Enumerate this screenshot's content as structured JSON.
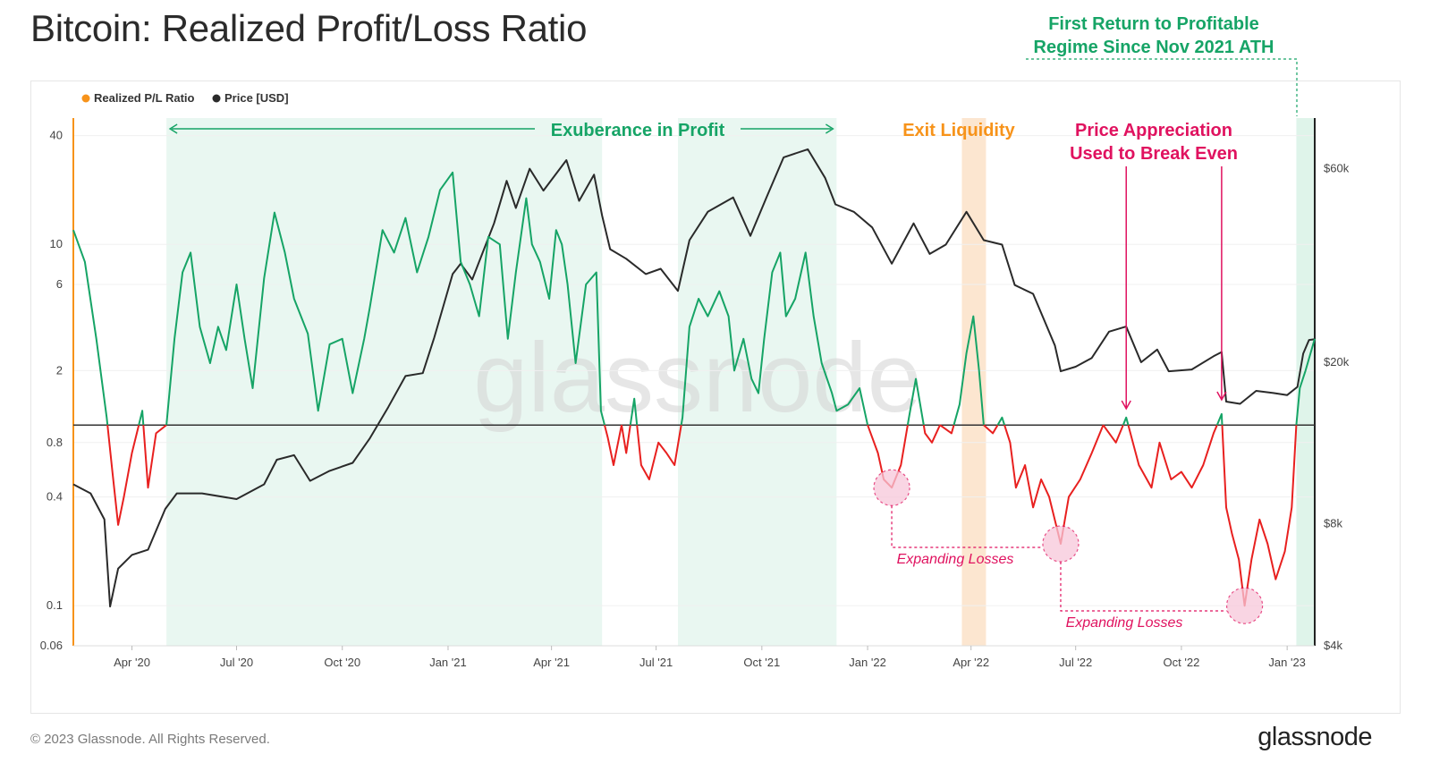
{
  "page": {
    "title": "Bitcoin: Realized Profit/Loss Ratio",
    "footer_copyright": "© 2023 Glassnode. All Rights Reserved.",
    "footer_logo": "glassnode",
    "watermark": "glassnode"
  },
  "colors": {
    "profit": "#16a466",
    "loss": "#e8201f",
    "price": "#2a2a2a",
    "ratio_legend": "#f7931a",
    "exuberance_text": "#16a466",
    "exit_text": "#f7931a",
    "break_even_text": "#e0125f",
    "expanding_text": "#e0125f",
    "shade_green": "#e5f6ee",
    "shade_orange": "#fbe2c8",
    "shade_recent": "#d9f2e6",
    "circle_fill": "#f7c8da"
  },
  "chart_data": {
    "type": "line",
    "title": "Bitcoin: Realized Profit/Loss Ratio",
    "legend": [
      {
        "name": "Realized P/L Ratio",
        "color": "#f7931a"
      },
      {
        "name": "Price [USD]",
        "color": "#2a2a2a"
      }
    ],
    "legend_position": "top-left",
    "x_ticks": [
      "Apr '20",
      "Jul '20",
      "Oct '20",
      "Jan '21",
      "Apr '21",
      "Jul '21",
      "Oct '21",
      "Jan '22",
      "Apr '22",
      "Jul '22",
      "Oct '22",
      "Jan '23"
    ],
    "x_range": [
      "2020-02-10",
      "2023-01-25"
    ],
    "y_left": {
      "scale": "log",
      "range": [
        0.06,
        50
      ],
      "ticks": [
        "40",
        "10",
        "6",
        "2",
        "0.8",
        "0.4",
        "0.1",
        "0.06"
      ],
      "tick_values": [
        40,
        10,
        6,
        2,
        0.8,
        0.4,
        0.1,
        0.06
      ]
    },
    "y_right": {
      "scale": "log",
      "range": [
        4000,
        80000
      ],
      "ticks": [
        "$60k",
        "$20k",
        "$8k",
        "$4k"
      ],
      "tick_values": [
        60000,
        20000,
        8000,
        4000
      ]
    },
    "threshold": 1,
    "series": [
      {
        "name": "Realized P/L Ratio",
        "axis": "left",
        "points": [
          [
            "2020-02-10",
            12
          ],
          [
            "2020-02-20",
            8
          ],
          [
            "2020-03-01",
            3
          ],
          [
            "2020-03-10",
            1.1
          ],
          [
            "2020-03-15",
            0.55
          ],
          [
            "2020-03-20",
            0.28
          ],
          [
            "2020-03-25",
            0.4
          ],
          [
            "2020-04-01",
            0.7
          ],
          [
            "2020-04-10",
            1.2
          ],
          [
            "2020-04-15",
            0.45
          ],
          [
            "2020-04-22",
            0.9
          ],
          [
            "2020-05-01",
            1.0
          ],
          [
            "2020-05-08",
            3
          ],
          [
            "2020-05-15",
            7
          ],
          [
            "2020-05-22",
            9
          ],
          [
            "2020-05-30",
            3.5
          ],
          [
            "2020-06-08",
            2.2
          ],
          [
            "2020-06-15",
            3.5
          ],
          [
            "2020-06-22",
            2.6
          ],
          [
            "2020-07-01",
            6
          ],
          [
            "2020-07-08",
            3
          ],
          [
            "2020-07-15",
            1.6
          ],
          [
            "2020-07-25",
            6.5
          ],
          [
            "2020-08-03",
            15
          ],
          [
            "2020-08-12",
            9
          ],
          [
            "2020-08-20",
            5
          ],
          [
            "2020-09-01",
            3.2
          ],
          [
            "2020-09-10",
            1.2
          ],
          [
            "2020-09-20",
            2.8
          ],
          [
            "2020-10-01",
            3
          ],
          [
            "2020-10-10",
            1.5
          ],
          [
            "2020-10-20",
            3
          ],
          [
            "2020-10-25",
            4.5
          ],
          [
            "2020-11-05",
            12
          ],
          [
            "2020-11-15",
            9
          ],
          [
            "2020-11-25",
            14
          ],
          [
            "2020-12-05",
            7
          ],
          [
            "2020-12-15",
            11
          ],
          [
            "2020-12-25",
            20
          ],
          [
            "2021-01-05",
            25
          ],
          [
            "2021-01-12",
            8
          ],
          [
            "2021-01-20",
            6
          ],
          [
            "2021-01-28",
            4
          ],
          [
            "2021-02-05",
            11
          ],
          [
            "2021-02-15",
            10
          ],
          [
            "2021-02-22",
            3
          ],
          [
            "2021-03-01",
            7
          ],
          [
            "2021-03-10",
            18
          ],
          [
            "2021-03-15",
            10
          ],
          [
            "2021-03-22",
            8
          ],
          [
            "2021-03-30",
            5
          ],
          [
            "2021-04-05",
            12
          ],
          [
            "2021-04-10",
            10
          ],
          [
            "2021-04-15",
            6
          ],
          [
            "2021-04-22",
            2.2
          ],
          [
            "2021-05-01",
            6
          ],
          [
            "2021-05-10",
            7
          ],
          [
            "2021-05-14",
            1.2
          ],
          [
            "2021-05-20",
            0.85
          ],
          [
            "2021-05-25",
            0.6
          ],
          [
            "2021-06-01",
            1.0
          ],
          [
            "2021-06-05",
            0.7
          ],
          [
            "2021-06-12",
            1.4
          ],
          [
            "2021-06-18",
            0.6
          ],
          [
            "2021-06-25",
            0.5
          ],
          [
            "2021-07-03",
            0.8
          ],
          [
            "2021-07-10",
            0.7
          ],
          [
            "2021-07-17",
            0.6
          ],
          [
            "2021-07-24",
            1.1
          ],
          [
            "2021-07-30",
            3.5
          ],
          [
            "2021-08-07",
            5
          ],
          [
            "2021-08-15",
            4
          ],
          [
            "2021-08-25",
            5.5
          ],
          [
            "2021-09-02",
            4
          ],
          [
            "2021-09-07",
            2
          ],
          [
            "2021-09-15",
            3
          ],
          [
            "2021-09-22",
            1.8
          ],
          [
            "2021-09-28",
            1.5
          ],
          [
            "2021-10-03",
            3
          ],
          [
            "2021-10-10",
            7
          ],
          [
            "2021-10-17",
            9
          ],
          [
            "2021-10-22",
            4
          ],
          [
            "2021-10-30",
            5
          ],
          [
            "2021-11-08",
            9
          ],
          [
            "2021-11-15",
            4
          ],
          [
            "2021-11-22",
            2.2
          ],
          [
            "2021-12-01",
            1.5
          ],
          [
            "2021-12-05",
            1.2
          ],
          [
            "2021-12-15",
            1.3
          ],
          [
            "2021-12-25",
            1.6
          ],
          [
            "2022-01-01",
            1.0
          ],
          [
            "2022-01-10",
            0.7
          ],
          [
            "2022-01-15",
            0.5
          ],
          [
            "2022-01-22",
            0.45
          ],
          [
            "2022-01-30",
            0.6
          ],
          [
            "2022-02-06",
            1.1
          ],
          [
            "2022-02-12",
            1.8
          ],
          [
            "2022-02-20",
            0.9
          ],
          [
            "2022-02-26",
            0.8
          ],
          [
            "2022-03-05",
            1.0
          ],
          [
            "2022-03-15",
            0.9
          ],
          [
            "2022-03-22",
            1.3
          ],
          [
            "2022-03-28",
            2.5
          ],
          [
            "2022-04-03",
            4
          ],
          [
            "2022-04-08",
            2
          ],
          [
            "2022-04-12",
            1.0
          ],
          [
            "2022-04-20",
            0.9
          ],
          [
            "2022-04-28",
            1.1
          ],
          [
            "2022-05-05",
            0.8
          ],
          [
            "2022-05-10",
            0.45
          ],
          [
            "2022-05-18",
            0.6
          ],
          [
            "2022-05-25",
            0.35
          ],
          [
            "2022-06-01",
            0.5
          ],
          [
            "2022-06-08",
            0.4
          ],
          [
            "2022-06-14",
            0.28
          ],
          [
            "2022-06-18",
            0.22
          ],
          [
            "2022-06-25",
            0.4
          ],
          [
            "2022-07-05",
            0.5
          ],
          [
            "2022-07-15",
            0.7
          ],
          [
            "2022-07-25",
            1.0
          ],
          [
            "2022-08-05",
            0.8
          ],
          [
            "2022-08-14",
            1.1
          ],
          [
            "2022-08-25",
            0.6
          ],
          [
            "2022-09-05",
            0.45
          ],
          [
            "2022-09-12",
            0.8
          ],
          [
            "2022-09-22",
            0.5
          ],
          [
            "2022-10-01",
            0.55
          ],
          [
            "2022-10-10",
            0.45
          ],
          [
            "2022-10-20",
            0.6
          ],
          [
            "2022-10-29",
            0.9
          ],
          [
            "2022-11-05",
            1.15
          ],
          [
            "2022-11-09",
            0.35
          ],
          [
            "2022-11-14",
            0.25
          ],
          [
            "2022-11-20",
            0.18
          ],
          [
            "2022-11-25",
            0.1
          ],
          [
            "2022-12-01",
            0.18
          ],
          [
            "2022-12-08",
            0.3
          ],
          [
            "2022-12-15",
            0.22
          ],
          [
            "2022-12-22",
            0.14
          ],
          [
            "2022-12-30",
            0.2
          ],
          [
            "2023-01-05",
            0.35
          ],
          [
            "2023-01-09",
            1.0
          ],
          [
            "2023-01-12",
            1.6
          ],
          [
            "2023-01-17",
            2.0
          ],
          [
            "2023-01-25",
            3.0
          ]
        ]
      },
      {
        "name": "Price [USD]",
        "axis": "right",
        "points": [
          [
            "2020-02-10",
            10000
          ],
          [
            "2020-02-25",
            9500
          ],
          [
            "2020-03-08",
            8200
          ],
          [
            "2020-03-13",
            5000
          ],
          [
            "2020-03-20",
            6200
          ],
          [
            "2020-04-01",
            6700
          ],
          [
            "2020-04-15",
            6900
          ],
          [
            "2020-04-30",
            8700
          ],
          [
            "2020-05-10",
            9500
          ],
          [
            "2020-06-01",
            9500
          ],
          [
            "2020-07-01",
            9200
          ],
          [
            "2020-07-25",
            10000
          ],
          [
            "2020-08-05",
            11500
          ],
          [
            "2020-08-20",
            11800
          ],
          [
            "2020-09-03",
            10200
          ],
          [
            "2020-09-20",
            10800
          ],
          [
            "2020-10-10",
            11300
          ],
          [
            "2020-10-25",
            13000
          ],
          [
            "2020-11-10",
            15500
          ],
          [
            "2020-11-25",
            18500
          ],
          [
            "2020-12-10",
            18800
          ],
          [
            "2020-12-20",
            23000
          ],
          [
            "2021-01-05",
            33000
          ],
          [
            "2021-01-12",
            35000
          ],
          [
            "2021-01-22",
            32000
          ],
          [
            "2021-02-10",
            44000
          ],
          [
            "2021-02-21",
            56000
          ],
          [
            "2021-03-01",
            48000
          ],
          [
            "2021-03-13",
            60000
          ],
          [
            "2021-03-25",
            53000
          ],
          [
            "2021-04-14",
            63000
          ],
          [
            "2021-04-25",
            50000
          ],
          [
            "2021-05-08",
            58000
          ],
          [
            "2021-05-15",
            46000
          ],
          [
            "2021-05-22",
            38000
          ],
          [
            "2021-06-05",
            36000
          ],
          [
            "2021-06-22",
            33000
          ],
          [
            "2021-07-05",
            34000
          ],
          [
            "2021-07-20",
            30000
          ],
          [
            "2021-07-30",
            40000
          ],
          [
            "2021-08-15",
            47000
          ],
          [
            "2021-09-06",
            51000
          ],
          [
            "2021-09-21",
            41000
          ],
          [
            "2021-10-05",
            51000
          ],
          [
            "2021-10-20",
            64000
          ],
          [
            "2021-11-10",
            67000
          ],
          [
            "2021-11-25",
            57000
          ],
          [
            "2021-12-04",
            49000
          ],
          [
            "2021-12-20",
            47000
          ],
          [
            "2022-01-05",
            43000
          ],
          [
            "2022-01-22",
            35000
          ],
          [
            "2022-02-10",
            44000
          ],
          [
            "2022-02-24",
            37000
          ],
          [
            "2022-03-10",
            39000
          ],
          [
            "2022-03-28",
            47000
          ],
          [
            "2022-04-12",
            40000
          ],
          [
            "2022-04-28",
            39000
          ],
          [
            "2022-05-09",
            31000
          ],
          [
            "2022-05-25",
            29500
          ],
          [
            "2022-06-13",
            22000
          ],
          [
            "2022-06-18",
            19000
          ],
          [
            "2022-07-01",
            19500
          ],
          [
            "2022-07-15",
            20500
          ],
          [
            "2022-07-30",
            23800
          ],
          [
            "2022-08-14",
            24500
          ],
          [
            "2022-08-27",
            20000
          ],
          [
            "2022-09-10",
            21500
          ],
          [
            "2022-09-20",
            19000
          ],
          [
            "2022-10-10",
            19200
          ],
          [
            "2022-10-29",
            20700
          ],
          [
            "2022-11-05",
            21200
          ],
          [
            "2022-11-09",
            16000
          ],
          [
            "2022-11-21",
            15800
          ],
          [
            "2022-12-05",
            17000
          ],
          [
            "2022-12-20",
            16800
          ],
          [
            "2023-01-01",
            16600
          ],
          [
            "2023-01-10",
            17400
          ],
          [
            "2023-01-15",
            21000
          ],
          [
            "2023-01-20",
            22700
          ],
          [
            "2023-01-25",
            22800
          ]
        ]
      }
    ]
  },
  "annotations": {
    "exuberance": "Exuberance in Profit",
    "exit_liquidity": "Exit Liquidity",
    "break_even_line1": "Price Appreciation",
    "break_even_line2": "Used to Break Even",
    "first_return_line1": "First Return to Profitable",
    "first_return_line2": "Regime Since Nov 2021 ATH",
    "expanding_losses_1": "Expanding Losses",
    "expanding_losses_2": "Expanding Losses"
  }
}
